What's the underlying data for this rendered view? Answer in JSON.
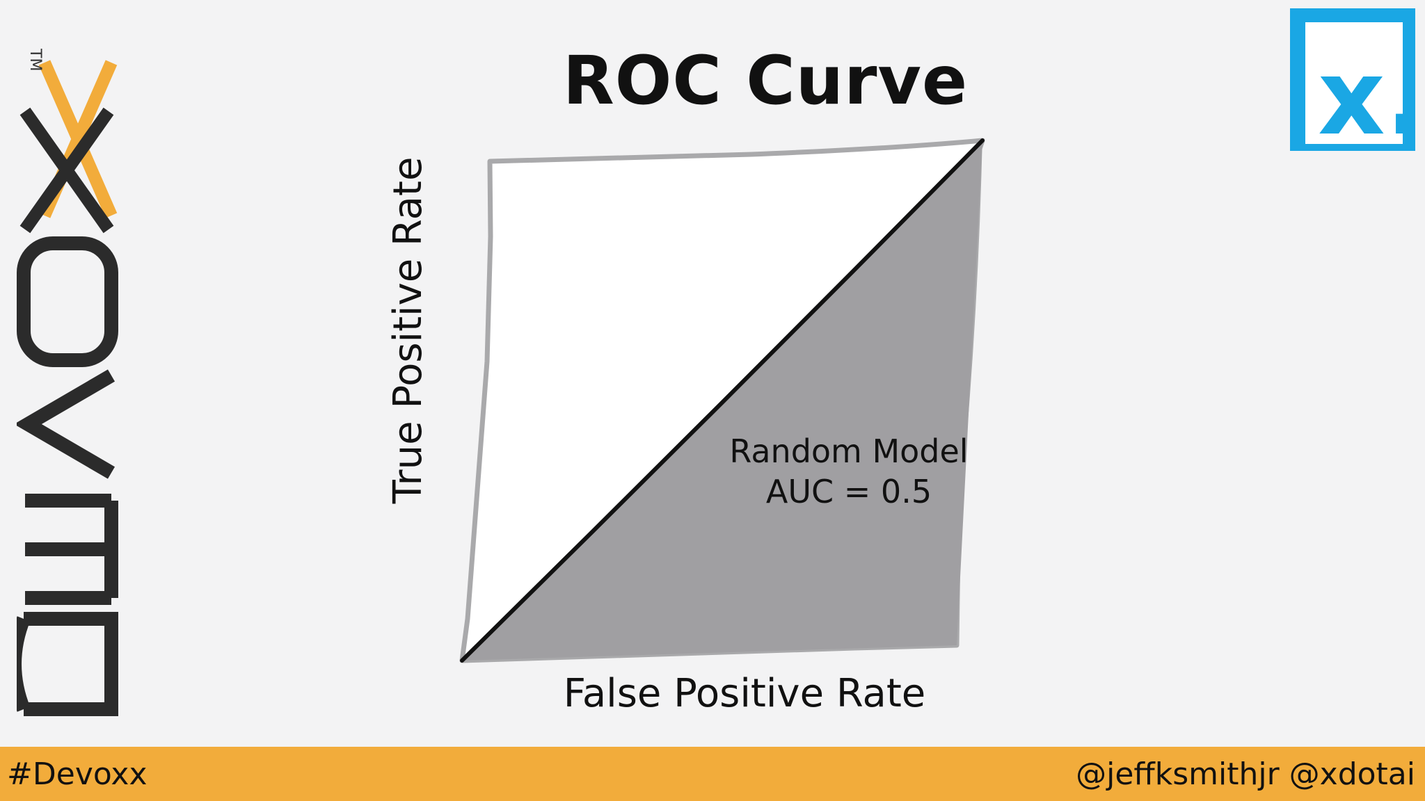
{
  "slide": {
    "title": "ROC Curve",
    "footer_hashtag": "#Devoxx",
    "footer_handles": "@jeffksmithjr @xdotai"
  },
  "logos": {
    "brand_text": "DEVOXX",
    "trademark": "TM",
    "corner_text": "x."
  },
  "colors": {
    "accent_orange": "#f2ac3b",
    "corner_logo_blue": "#1aa7e4",
    "fill_gray": "#a09fa2",
    "frame_gray": "#a9a9ab",
    "ink": "#111111"
  },
  "chart_data": {
    "type": "area",
    "title": "ROC Curve",
    "xlabel": "False Positive Rate",
    "ylabel": "True Positive Rate",
    "xlim": [
      0,
      1
    ],
    "ylim": [
      0,
      1
    ],
    "ticks_shown": false,
    "grid": false,
    "series": [
      {
        "x": [
          0,
          0.25,
          0.5,
          0.75,
          1
        ],
        "y": [
          0,
          0.25,
          0.5,
          0.75,
          1
        ],
        "fill": "below"
      }
    ],
    "annotation": {
      "line1": "Random Model",
      "line2": "AUC = 0.5"
    }
  }
}
